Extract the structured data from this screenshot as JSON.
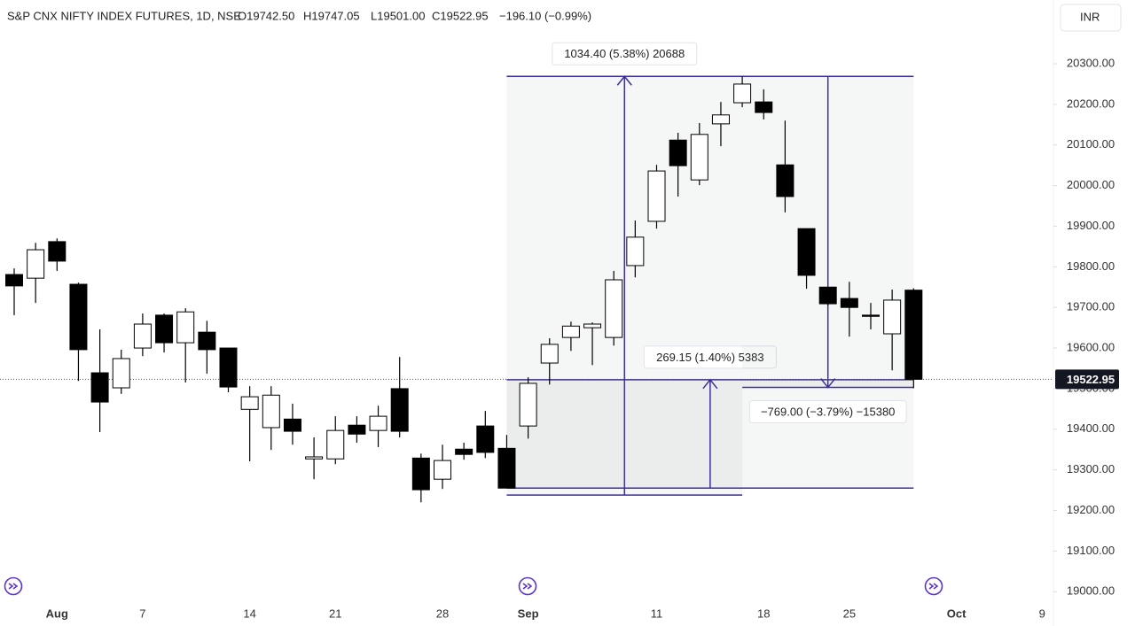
{
  "chart_data": {
    "type": "candlestick",
    "legend": {
      "symbol": "S&P CNX NIFTY INDEX FUTURES, 1D, NSE",
      "open": "O19742.50",
      "high": "H19747.05",
      "low": "L19501.00",
      "close": "C19522.95",
      "change": "−196.10 (−0.99%)"
    },
    "currency": "INR",
    "categories": [
      null,
      null,
      "Aug",
      null,
      null,
      null,
      "7",
      null,
      null,
      null,
      null,
      "14",
      null,
      null,
      null,
      "21",
      null,
      null,
      null,
      null,
      "28",
      null,
      null,
      null,
      "Sep",
      null,
      null,
      null,
      null,
      null,
      "11",
      null,
      null,
      null,
      null,
      "18",
      null,
      null,
      null,
      "25",
      null,
      null,
      null,
      null,
      "Oct",
      null,
      null,
      null,
      "9"
    ],
    "open": [
      19781,
      19772,
      19862,
      19757,
      19539,
      19502,
      19600,
      19681,
      19613,
      19639,
      19600,
      19449,
      19404,
      19425,
      19327,
      19327,
      19410,
      19397,
      19500,
      19329,
      19277,
      19351,
      19408,
      19353,
      19408,
      19563,
      19626,
      19650,
      19626,
      19803,
      19912,
      20112,
      20014,
      20152,
      20204,
      20206,
      20051,
      19894,
      19750,
      19722,
      19681,
      19635,
      19742.5,
      null,
      null,
      null,
      null,
      null,
      null
    ],
    "high": [
      19796,
      19859,
      19870,
      19761,
      19646,
      19596,
      19685,
      19685,
      19698,
      19667,
      19600,
      19506,
      19506,
      19463,
      19380,
      19432,
      19432,
      19458,
      19578,
      19340,
      19362,
      19367,
      19445,
      19386,
      19528,
      19624,
      19665,
      19663,
      19790,
      19914,
      20051,
      20130,
      20154,
      20206,
      20269,
      20237,
      20160,
      19894,
      19750,
      19763,
      19711,
      19744,
      19747.05,
      null,
      null,
      null,
      null,
      null,
      null
    ],
    "low": [
      19681,
      19711,
      19790,
      19519,
      19393,
      19487,
      19580,
      19589,
      19515,
      19537,
      19491,
      19321,
      19349,
      19362,
      19277,
      19314,
      19367,
      19356,
      19380,
      19220,
      19253,
      19325,
      19329,
      19255,
      19377,
      19510,
      19593,
      19558,
      19606,
      19774,
      19894,
      19973,
      20001,
      20097,
      20193,
      20163,
      19934,
      19746,
      19705,
      19628,
      19646,
      19545,
      19501,
      null,
      null,
      null,
      null,
      null,
      null
    ],
    "close": [
      19753,
      19842,
      19814,
      19596,
      19467,
      19574,
      19659,
      19613,
      19689,
      19596,
      19504,
      19480,
      19484,
      19395,
      19332,
      19397,
      19388,
      19432,
      19395,
      19251,
      19323,
      19338,
      19343,
      19255,
      19513,
      19609,
      19654,
      19659,
      19768,
      19873,
      20036,
      20049,
      20126,
      20174,
      20250,
      20180,
      19973,
      19779,
      19709,
      19700,
      19678,
      19718,
      19522.95,
      null,
      null,
      null,
      null,
      null,
      null
    ],
    "up_color": "#ffffff",
    "down_color": "#000000",
    "ylim": [
      18970,
      20457
    ],
    "yticks": [
      {
        "value": 19000,
        "label": "19000.00"
      },
      {
        "value": 19100,
        "label": "19100.00"
      },
      {
        "value": 19200,
        "label": "19200.00"
      },
      {
        "value": 19300,
        "label": "19300.00"
      },
      {
        "value": 19400,
        "label": "19400.00"
      },
      {
        "value": 19500,
        "label": "19500.00"
      },
      {
        "value": 19600,
        "label": "19600.00"
      },
      {
        "value": 19700,
        "label": "19700.00"
      },
      {
        "value": 19800,
        "label": "19800.00"
      },
      {
        "value": 19900,
        "label": "19900.00"
      },
      {
        "value": 20000,
        "label": "20000.00"
      },
      {
        "value": 20100,
        "label": "20100.00"
      },
      {
        "value": 20200,
        "label": "20200.00"
      },
      {
        "value": 20300,
        "label": "20300.00"
      }
    ],
    "last_price": {
      "value": 19522.95,
      "label": "19522.95"
    },
    "annotations": [
      {
        "label": "1034.40 (5.38%) 20688",
        "from": 19238,
        "to": 20269,
        "start": 23,
        "end": 34
      },
      {
        "label": "269.15 (1.40%) 5383",
        "from": 19255,
        "to": 19522,
        "start": 23,
        "end": 42
      },
      {
        "label": "−769.00 (−3.79%) −15380",
        "from": 20269,
        "to": 19503,
        "start": 34,
        "end": 42
      }
    ],
    "annotation_color": "#3b2f9e"
  }
}
